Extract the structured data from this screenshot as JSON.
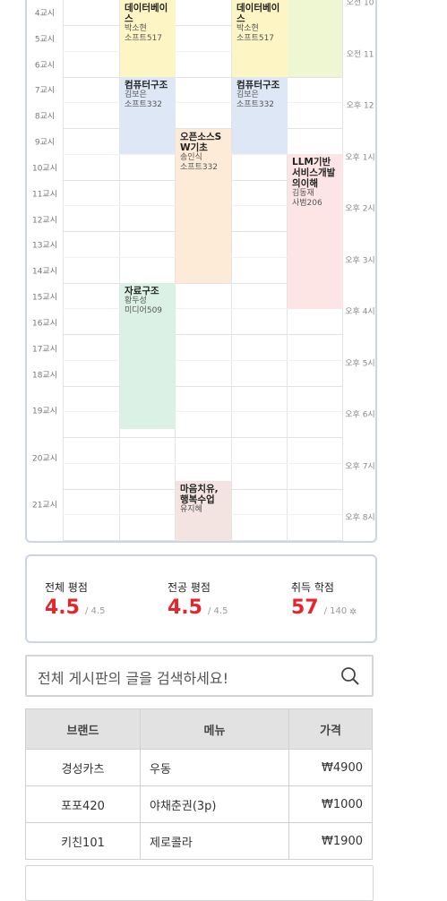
{
  "timetable": {
    "periods": [
      "4교시",
      "5교시",
      "6교시",
      "7교시",
      "8교시",
      "9교시",
      "10교시",
      "11교시",
      "12교시",
      "13교시",
      "14교시",
      "15교시",
      "16교시",
      "17교시",
      "18교시",
      "19교시",
      "20교시",
      "21교시"
    ],
    "hours": [
      "오전 10",
      "오전 11",
      "오후 12",
      "오후 1시",
      "오후 2시",
      "오후 3시",
      "오후 4시",
      "오후 5시",
      "오후 6시",
      "오후 7시",
      "오후 8시"
    ],
    "events": [
      {
        "title": "데이터베이스",
        "professor": "박소현",
        "room": "소프트517"
      },
      {
        "title": "데이터베이스",
        "professor": "박소현",
        "room": "소프트517"
      },
      {
        "title": "컴퓨터구조",
        "professor": "김보은",
        "room": "소프트332"
      },
      {
        "title": "컴퓨터구조",
        "professor": "김보은",
        "room": "소프트332"
      },
      {
        "title": "오픈소스SW기초",
        "professor": "송인식",
        "room": "소프트332"
      },
      {
        "title": "LLM기반서비스개발의이해",
        "professor": "김동재",
        "room": "사범206"
      },
      {
        "title": "자료구조",
        "professor": "황두성",
        "room": "미디어509"
      },
      {
        "title": "마음치유, 행복수업",
        "professor": "유지혜"
      }
    ]
  },
  "gpa": [
    {
      "label": "전체 평점",
      "value": "4.5",
      "max": "/ 4.5"
    },
    {
      "label": "전공 평점",
      "value": "4.5",
      "max": "/ 4.5"
    },
    {
      "label": "취득 학점",
      "value": "57",
      "max": "/ 140"
    }
  ],
  "search": {
    "placeholder": "전체 게시판의 글을 검색하세요!"
  },
  "table": {
    "headers": [
      "브랜드",
      "메뉴",
      "가격"
    ],
    "rows": [
      [
        "경성카츠",
        "우동",
        "₩4900"
      ],
      [
        "포포420",
        "야채춘권(3p)",
        "₩1000"
      ],
      [
        "키친101",
        "제로콜라",
        "₩1900"
      ]
    ]
  }
}
